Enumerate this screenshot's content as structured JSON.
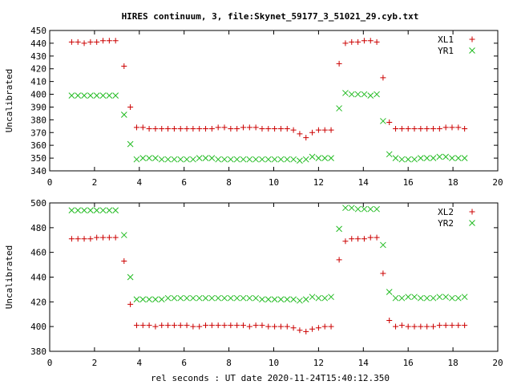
{
  "title": "HIRES continuum, 3, file:Skynet_59177_3_51021_29.cyb.txt",
  "xlabel": "rel seconds : UT date 2020-11-24T15:40:12.350",
  "colors": {
    "s1": "#cc0000",
    "s2": "#22bb22",
    "frame": "#000000"
  },
  "chart_data": [
    {
      "type": "scatter",
      "ylabel": "Uncalibrated",
      "xlim": [
        0,
        20
      ],
      "ylim": [
        340,
        450
      ],
      "xticks": [
        "0",
        "2",
        "4",
        "6",
        "8",
        "10",
        "12",
        "14",
        "16",
        "18",
        "20"
      ],
      "yticks": [
        "340",
        "350",
        "360",
        "370",
        "380",
        "390",
        "400",
        "410",
        "420",
        "430",
        "440",
        "450"
      ],
      "legend_position": "top-right",
      "x": [
        0.98,
        1.26,
        1.54,
        1.82,
        2.1,
        2.38,
        2.66,
        2.94,
        3.32,
        3.6,
        3.88,
        4.16,
        4.44,
        4.72,
        5.0,
        5.28,
        5.56,
        5.84,
        6.12,
        6.4,
        6.68,
        6.96,
        7.24,
        7.52,
        7.8,
        8.08,
        8.36,
        8.64,
        8.92,
        9.2,
        9.48,
        9.76,
        10.04,
        10.32,
        10.6,
        10.88,
        11.16,
        11.44,
        11.72,
        12.0,
        12.28,
        12.56,
        12.92,
        13.2,
        13.48,
        13.76,
        14.04,
        14.32,
        14.6,
        14.88,
        15.16,
        15.44,
        15.72,
        16.0,
        16.28,
        16.56,
        16.84,
        17.12,
        17.4,
        17.68,
        17.96,
        18.24,
        18.52
      ],
      "series": [
        {
          "name": "XL1",
          "marker": "plus",
          "y": [
            441,
            441,
            440,
            441,
            441,
            442,
            442,
            442,
            422,
            390,
            374,
            374,
            373,
            373,
            373,
            373,
            373,
            373,
            373,
            373,
            373,
            373,
            373,
            374,
            374,
            373,
            373,
            374,
            374,
            374,
            373,
            373,
            373,
            373,
            373,
            372,
            369,
            366,
            370,
            372,
            372,
            372,
            424,
            440,
            441,
            441,
            442,
            442,
            441,
            413,
            378,
            373,
            373,
            373,
            373,
            373,
            373,
            373,
            373,
            374,
            374,
            374,
            373
          ]
        },
        {
          "name": "YR1",
          "marker": "cross",
          "y": [
            399,
            399,
            399,
            399,
            399,
            399,
            399,
            399,
            384,
            361,
            349,
            350,
            350,
            350,
            349,
            349,
            349,
            349,
            349,
            349,
            350,
            350,
            350,
            349,
            349,
            349,
            349,
            349,
            349,
            349,
            349,
            349,
            349,
            349,
            349,
            349,
            348,
            349,
            351,
            350,
            350,
            350,
            389,
            401,
            400,
            400,
            400,
            399,
            400,
            379,
            353,
            350,
            349,
            349,
            349,
            350,
            350,
            350,
            351,
            351,
            350,
            350,
            350
          ]
        }
      ]
    },
    {
      "type": "scatter",
      "ylabel": "Uncalibrated",
      "xlim": [
        0,
        20
      ],
      "ylim": [
        380,
        500
      ],
      "xticks": [
        "0",
        "2",
        "4",
        "6",
        "8",
        "10",
        "12",
        "14",
        "16",
        "18",
        "20"
      ],
      "yticks": [
        "380",
        "400",
        "420",
        "440",
        "460",
        "480",
        "500"
      ],
      "legend_position": "top-right",
      "x": [
        0.98,
        1.26,
        1.54,
        1.82,
        2.1,
        2.38,
        2.66,
        2.94,
        3.32,
        3.6,
        3.88,
        4.16,
        4.44,
        4.72,
        5.0,
        5.28,
        5.56,
        5.84,
        6.12,
        6.4,
        6.68,
        6.96,
        7.24,
        7.52,
        7.8,
        8.08,
        8.36,
        8.64,
        8.92,
        9.2,
        9.48,
        9.76,
        10.04,
        10.32,
        10.6,
        10.88,
        11.16,
        11.44,
        11.72,
        12.0,
        12.28,
        12.56,
        12.92,
        13.2,
        13.48,
        13.76,
        14.04,
        14.32,
        14.6,
        14.88,
        15.16,
        15.44,
        15.72,
        16.0,
        16.28,
        16.56,
        16.84,
        17.12,
        17.4,
        17.68,
        17.96,
        18.24,
        18.52
      ],
      "series": [
        {
          "name": "XL2",
          "marker": "plus",
          "y": [
            471,
            471,
            471,
            471,
            472,
            472,
            472,
            472,
            453,
            418,
            401,
            401,
            401,
            400,
            401,
            401,
            401,
            401,
            401,
            400,
            400,
            401,
            401,
            401,
            401,
            401,
            401,
            401,
            400,
            401,
            401,
            400,
            400,
            400,
            400,
            399,
            397,
            396,
            398,
            399,
            400,
            400,
            454,
            469,
            471,
            471,
            471,
            472,
            472,
            443,
            405,
            400,
            401,
            400,
            400,
            400,
            400,
            400,
            401,
            401,
            401,
            401,
            401
          ]
        },
        {
          "name": "YR2",
          "marker": "cross",
          "y": [
            494,
            494,
            494,
            494,
            494,
            494,
            494,
            494,
            474,
            440,
            422,
            422,
            422,
            422,
            422,
            423,
            423,
            423,
            423,
            423,
            423,
            423,
            423,
            423,
            423,
            423,
            423,
            423,
            423,
            423,
            422,
            422,
            422,
            422,
            422,
            422,
            421,
            422,
            424,
            423,
            423,
            424,
            479,
            496,
            496,
            495,
            495,
            495,
            495,
            466,
            428,
            423,
            423,
            424,
            424,
            423,
            423,
            423,
            424,
            424,
            423,
            423,
            424
          ]
        }
      ]
    }
  ]
}
